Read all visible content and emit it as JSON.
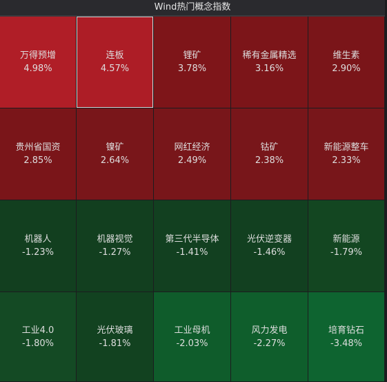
{
  "header": {
    "title": "Wind热门概念指数"
  },
  "tiles": [
    {
      "name": "万得预增",
      "change": "4.98%",
      "color": "#b01e27"
    },
    {
      "name": "连板",
      "change": "4.57%",
      "color": "#ad1d26"
    },
    {
      "name": "锂矿",
      "change": "3.78%",
      "color": "#7e1519"
    },
    {
      "name": "稀有金属精选",
      "change": "3.16%",
      "color": "#7c1519"
    },
    {
      "name": "维生素",
      "change": "2.90%",
      "color": "#7a1519"
    },
    {
      "name": "贵州省国资",
      "change": "2.85%",
      "color": "#7a1519"
    },
    {
      "name": "镍矿",
      "change": "2.64%",
      "color": "#79161a"
    },
    {
      "name": "网红经济",
      "change": "2.49%",
      "color": "#78161a"
    },
    {
      "name": "钴矿",
      "change": "2.38%",
      "color": "#78161a"
    },
    {
      "name": "新能源整车",
      "change": "2.33%",
      "color": "#78161a"
    },
    {
      "name": "机器人",
      "change": "-1.23%",
      "color": "#123f1f"
    },
    {
      "name": "机器视觉",
      "change": "-1.27%",
      "color": "#123f1f"
    },
    {
      "name": "第三代半导体",
      "change": "-1.41%",
      "color": "#124020"
    },
    {
      "name": "光伏逆变器",
      "change": "-1.46%",
      "color": "#124020"
    },
    {
      "name": "新能源",
      "change": "-1.79%",
      "color": "#134621"
    },
    {
      "name": "工业4.0",
      "change": "-1.80%",
      "color": "#144a24"
    },
    {
      "name": "光伏玻璃",
      "change": "-1.81%",
      "color": "#124220"
    },
    {
      "name": "工业母机",
      "change": "-2.03%",
      "color": "#0f5c2b"
    },
    {
      "name": "风力发电",
      "change": "-2.27%",
      "color": "#0f5e2c"
    },
    {
      "name": "培育钻石",
      "change": "-3.48%",
      "color": "#0e6430"
    }
  ],
  "selected": 1
}
